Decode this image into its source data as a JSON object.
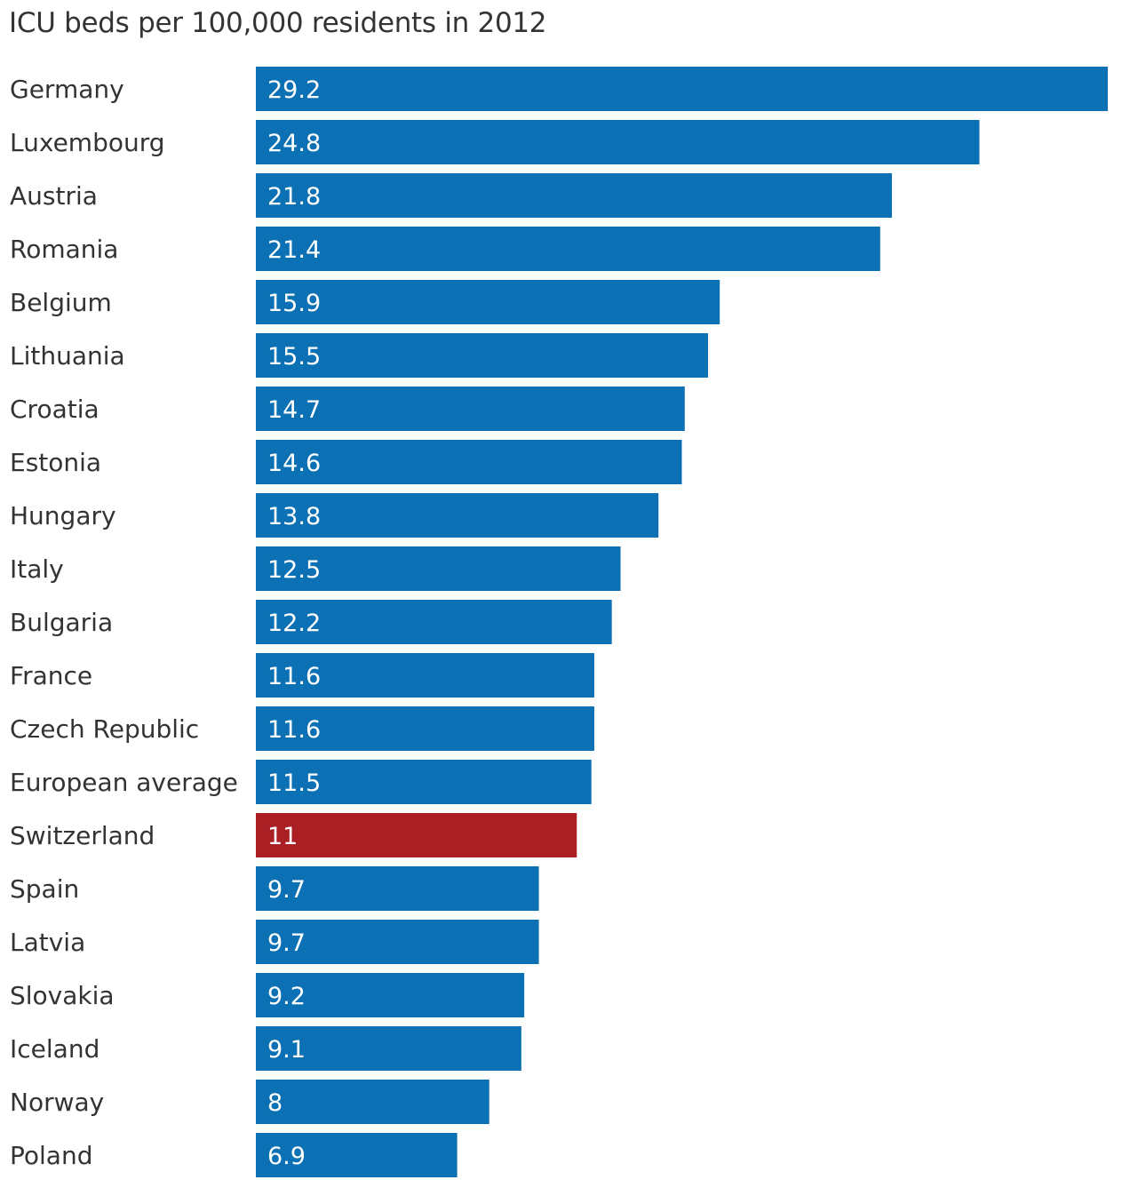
{
  "chart_data": {
    "type": "bar",
    "orientation": "horizontal",
    "title": "ICU beds per 100,000 residents in 2012",
    "xlabel": "",
    "ylabel": "",
    "xlim": [
      0,
      29.2
    ],
    "grid": false,
    "legend": "none",
    "colors": {
      "default": "#0b70b4",
      "highlight": "#a91f23"
    },
    "highlight_category": "Switzerland",
    "categories": [
      "Germany",
      "Luxembourg",
      "Austria",
      "Romania",
      "Belgium",
      "Lithuania",
      "Croatia",
      "Estonia",
      "Hungary",
      "Italy",
      "Bulgaria",
      "France",
      "Czech Republic",
      "European average",
      "Switzerland",
      "Spain",
      "Latvia",
      "Slovakia",
      "Iceland",
      "Norway",
      "Poland"
    ],
    "values": [
      29.2,
      24.8,
      21.8,
      21.4,
      15.9,
      15.5,
      14.7,
      14.6,
      13.8,
      12.5,
      12.2,
      11.6,
      11.6,
      11.5,
      11,
      9.7,
      9.7,
      9.2,
      9.1,
      8,
      6.9
    ],
    "value_labels": [
      "29.2",
      "24.8",
      "21.8",
      "21.4",
      "15.9",
      "15.5",
      "14.7",
      "14.6",
      "13.8",
      "12.5",
      "12.2",
      "11.6",
      "11.6",
      "11.5",
      "11",
      "9.7",
      "9.7",
      "9.2",
      "9.1",
      "8",
      "6.9"
    ]
  }
}
